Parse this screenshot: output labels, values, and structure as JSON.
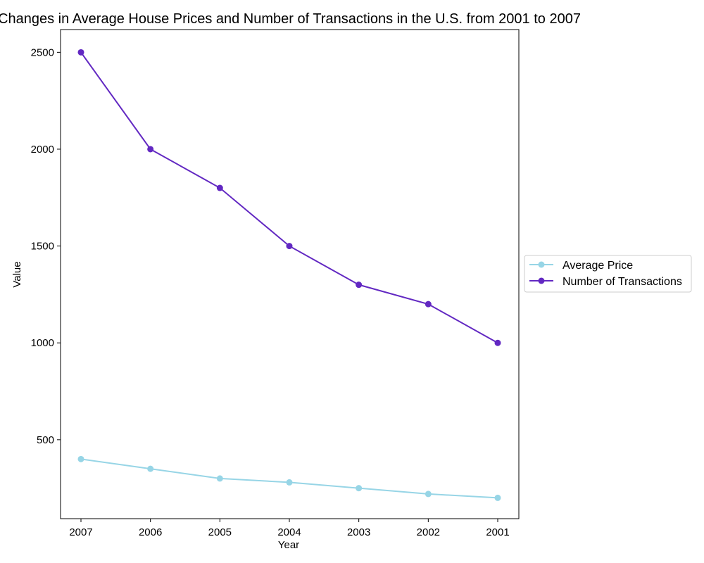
{
  "chart_data": {
    "type": "line",
    "title": "Changes in Average House Prices and Number of Transactions in the U.S. from 2001 to 2007",
    "xlabel": "Year",
    "ylabel": "Value",
    "categories": [
      "2007",
      "2006",
      "2005",
      "2004",
      "2003",
      "2002",
      "2001"
    ],
    "y_ticks": [
      500,
      1000,
      1500,
      2000,
      2500
    ],
    "ylim": [
      92.5,
      2617.5
    ],
    "grid": false,
    "legend_position": "right-center",
    "series": [
      {
        "name": "Average Price",
        "values": [
          400,
          350,
          300,
          280,
          250,
          220,
          200
        ],
        "color": "#97d5e6"
      },
      {
        "name": "Number of Transactions",
        "values": [
          2500,
          2000,
          1800,
          1500,
          1300,
          1200,
          1000
        ],
        "color": "#6228c2"
      }
    ]
  }
}
